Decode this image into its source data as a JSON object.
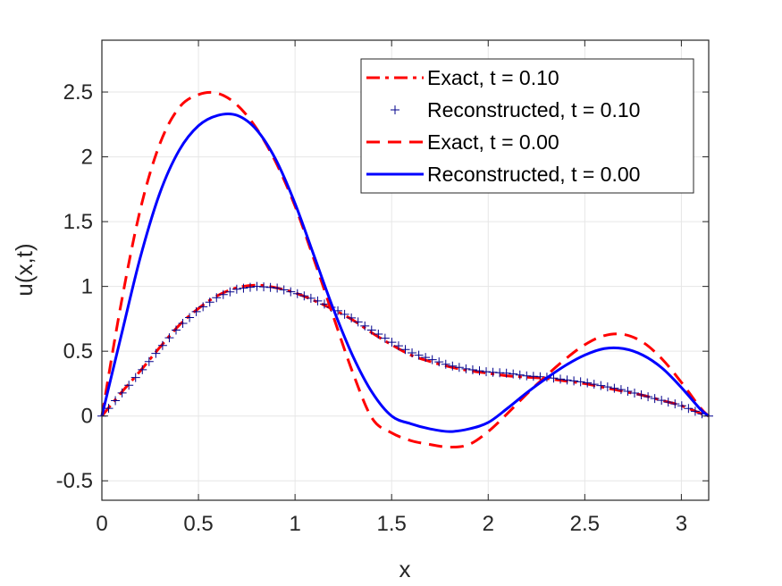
{
  "chart_data": {
    "type": "line",
    "title": "",
    "xlabel": "x",
    "ylabel": "u(x,t)",
    "xlim": [
      0,
      3.14159
    ],
    "ylim": [
      -0.65,
      2.9
    ],
    "xticks": [
      0,
      0.5,
      1,
      1.5,
      2,
      2.5,
      3
    ],
    "xtick_labels": [
      "0",
      "0.5",
      "1",
      "1.5",
      "2",
      "2.5",
      "3"
    ],
    "yticks": [
      -0.5,
      0,
      0.5,
      1,
      1.5,
      2,
      2.5
    ],
    "ytick_labels": [
      "-0.5",
      "0",
      "0.5",
      "1",
      "1.5",
      "2",
      "2.5"
    ],
    "grid": true,
    "legend_position": "top-right",
    "series": [
      {
        "name": "Exact, t = 0.10",
        "color": "#ff0000",
        "style": "dashdot",
        "x": [
          0,
          0.1,
          0.2,
          0.3,
          0.4,
          0.5,
          0.6,
          0.7,
          0.8,
          0.9,
          1.0,
          1.1,
          1.2,
          1.3,
          1.4,
          1.5,
          1.6,
          1.7,
          1.8,
          1.9,
          2.0,
          2.1,
          2.2,
          2.3,
          2.4,
          2.5,
          2.6,
          2.7,
          2.8,
          2.9,
          3.0,
          3.1,
          3.1416
        ],
        "y": [
          0,
          0.18,
          0.35,
          0.53,
          0.7,
          0.83,
          0.93,
          0.99,
          1.01,
          0.99,
          0.95,
          0.89,
          0.82,
          0.74,
          0.64,
          0.55,
          0.47,
          0.42,
          0.38,
          0.35,
          0.33,
          0.31,
          0.3,
          0.29,
          0.27,
          0.25,
          0.22,
          0.19,
          0.16,
          0.12,
          0.08,
          0.02,
          0
        ]
      },
      {
        "name": "Reconstructed, t = 0.10",
        "color": "#00008b",
        "style": "plus-markers",
        "x": [
          0,
          0.1,
          0.2,
          0.3,
          0.4,
          0.5,
          0.6,
          0.7,
          0.8,
          0.9,
          1.0,
          1.1,
          1.2,
          1.3,
          1.4,
          1.5,
          1.6,
          1.7,
          1.8,
          1.9,
          2.0,
          2.1,
          2.2,
          2.3,
          2.4,
          2.5,
          2.6,
          2.7,
          2.8,
          2.9,
          3.0,
          3.1,
          3.1416
        ],
        "y": [
          0,
          0.17,
          0.34,
          0.52,
          0.69,
          0.82,
          0.92,
          0.98,
          1.0,
          0.99,
          0.95,
          0.9,
          0.83,
          0.75,
          0.66,
          0.57,
          0.49,
          0.44,
          0.39,
          0.36,
          0.34,
          0.33,
          0.31,
          0.3,
          0.28,
          0.26,
          0.23,
          0.2,
          0.16,
          0.12,
          0.08,
          0.02,
          0
        ]
      },
      {
        "name": "Exact, t = 0.00",
        "color": "#ff0000",
        "style": "dashed",
        "x": [
          0,
          0.1,
          0.2,
          0.3,
          0.4,
          0.5,
          0.6,
          0.7,
          0.8,
          0.9,
          1.0,
          1.1,
          1.2,
          1.3,
          1.4,
          1.5,
          1.6,
          1.7,
          1.8,
          1.9,
          2.0,
          2.1,
          2.2,
          2.3,
          2.4,
          2.5,
          2.6,
          2.7,
          2.8,
          2.9,
          3.0,
          3.1,
          3.1416
        ],
        "y": [
          0,
          0.87,
          1.6,
          2.1,
          2.38,
          2.48,
          2.49,
          2.4,
          2.22,
          1.96,
          1.62,
          1.2,
          0.76,
          0.33,
          -0.02,
          -0.13,
          -0.19,
          -0.22,
          -0.24,
          -0.22,
          -0.12,
          0.02,
          0.17,
          0.31,
          0.44,
          0.55,
          0.62,
          0.63,
          0.57,
          0.44,
          0.26,
          0.06,
          0
        ]
      },
      {
        "name": "Reconstructed, t = 0.00",
        "color": "#0000ff",
        "style": "solid",
        "x": [
          0,
          0.1,
          0.2,
          0.3,
          0.4,
          0.5,
          0.6,
          0.7,
          0.8,
          0.9,
          1.0,
          1.1,
          1.2,
          1.3,
          1.4,
          1.5,
          1.6,
          1.7,
          1.8,
          1.9,
          2.0,
          2.1,
          2.2,
          2.3,
          2.4,
          2.5,
          2.6,
          2.7,
          2.8,
          2.9,
          3.0,
          3.1,
          3.1416
        ],
        "y": [
          0,
          0.62,
          1.23,
          1.72,
          2.05,
          2.24,
          2.32,
          2.32,
          2.21,
          1.98,
          1.64,
          1.23,
          0.82,
          0.46,
          0.18,
          0.0,
          -0.06,
          -0.1,
          -0.12,
          -0.1,
          -0.05,
          0.06,
          0.18,
          0.29,
          0.39,
          0.47,
          0.52,
          0.52,
          0.47,
          0.37,
          0.22,
          0.05,
          0
        ]
      }
    ]
  }
}
